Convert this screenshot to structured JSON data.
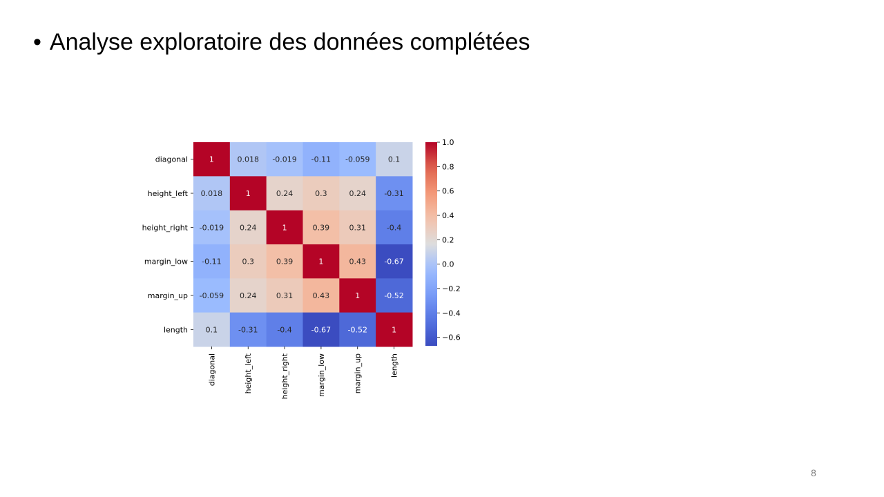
{
  "slide": {
    "bullet": "•",
    "title": "Analyse exploratoire des données complétées",
    "page_number": "8"
  },
  "chart_data": {
    "type": "heatmap",
    "colormap": "coolwarm",
    "x_labels": [
      "diagonal",
      "height_left",
      "height_right",
      "margin_low",
      "margin_up",
      "length"
    ],
    "x_labels_displayed": [
      "diagonal",
      "height_left",
      "height_right",
      "margin_low",
      "margin_up",
      "length"
    ],
    "y_labels": [
      "diagonal",
      "height_left",
      "height_right",
      "margin_low",
      "margin_up",
      "length"
    ],
    "values": [
      [
        1,
        0.018,
        -0.019,
        -0.11,
        -0.059,
        0.1
      ],
      [
        0.018,
        1,
        0.24,
        0.3,
        0.24,
        -0.31
      ],
      [
        -0.019,
        0.24,
        1,
        0.39,
        0.31,
        -0.4
      ],
      [
        -0.11,
        0.3,
        0.39,
        1,
        0.43,
        -0.67
      ],
      [
        -0.059,
        0.24,
        0.31,
        0.43,
        1,
        -0.52
      ],
      [
        0.1,
        -0.31,
        -0.4,
        -0.67,
        -0.52,
        1
      ]
    ],
    "cell_labels": [
      [
        "1",
        "0.018",
        "-0.019",
        "-0.11",
        "-0.059",
        "0.1"
      ],
      [
        "0.018",
        "1",
        "0.24",
        "0.3",
        "0.24",
        "-0.31"
      ],
      [
        "-0.019",
        "0.24",
        "1",
        "0.39",
        "0.31",
        "-0.4"
      ],
      [
        "-0.11",
        "0.3",
        "0.39",
        "1",
        "0.43",
        "-0.67"
      ],
      [
        "-0.059",
        "0.24",
        "0.31",
        "0.43",
        "1",
        "-0.52"
      ],
      [
        "0.1",
        "-0.31",
        "-0.4",
        "-0.67",
        "-0.52",
        "1"
      ]
    ],
    "colorbar": {
      "range": [
        -0.67,
        1
      ],
      "ticks": [
        1.0,
        0.8,
        0.6,
        0.4,
        0.2,
        0.0,
        -0.2,
        -0.4,
        -0.6
      ],
      "tick_labels": [
        "1.0",
        "0.8",
        "0.6",
        "0.4",
        "0.2",
        "0.0",
        "−0.2",
        "−0.4",
        "−0.6"
      ]
    }
  }
}
